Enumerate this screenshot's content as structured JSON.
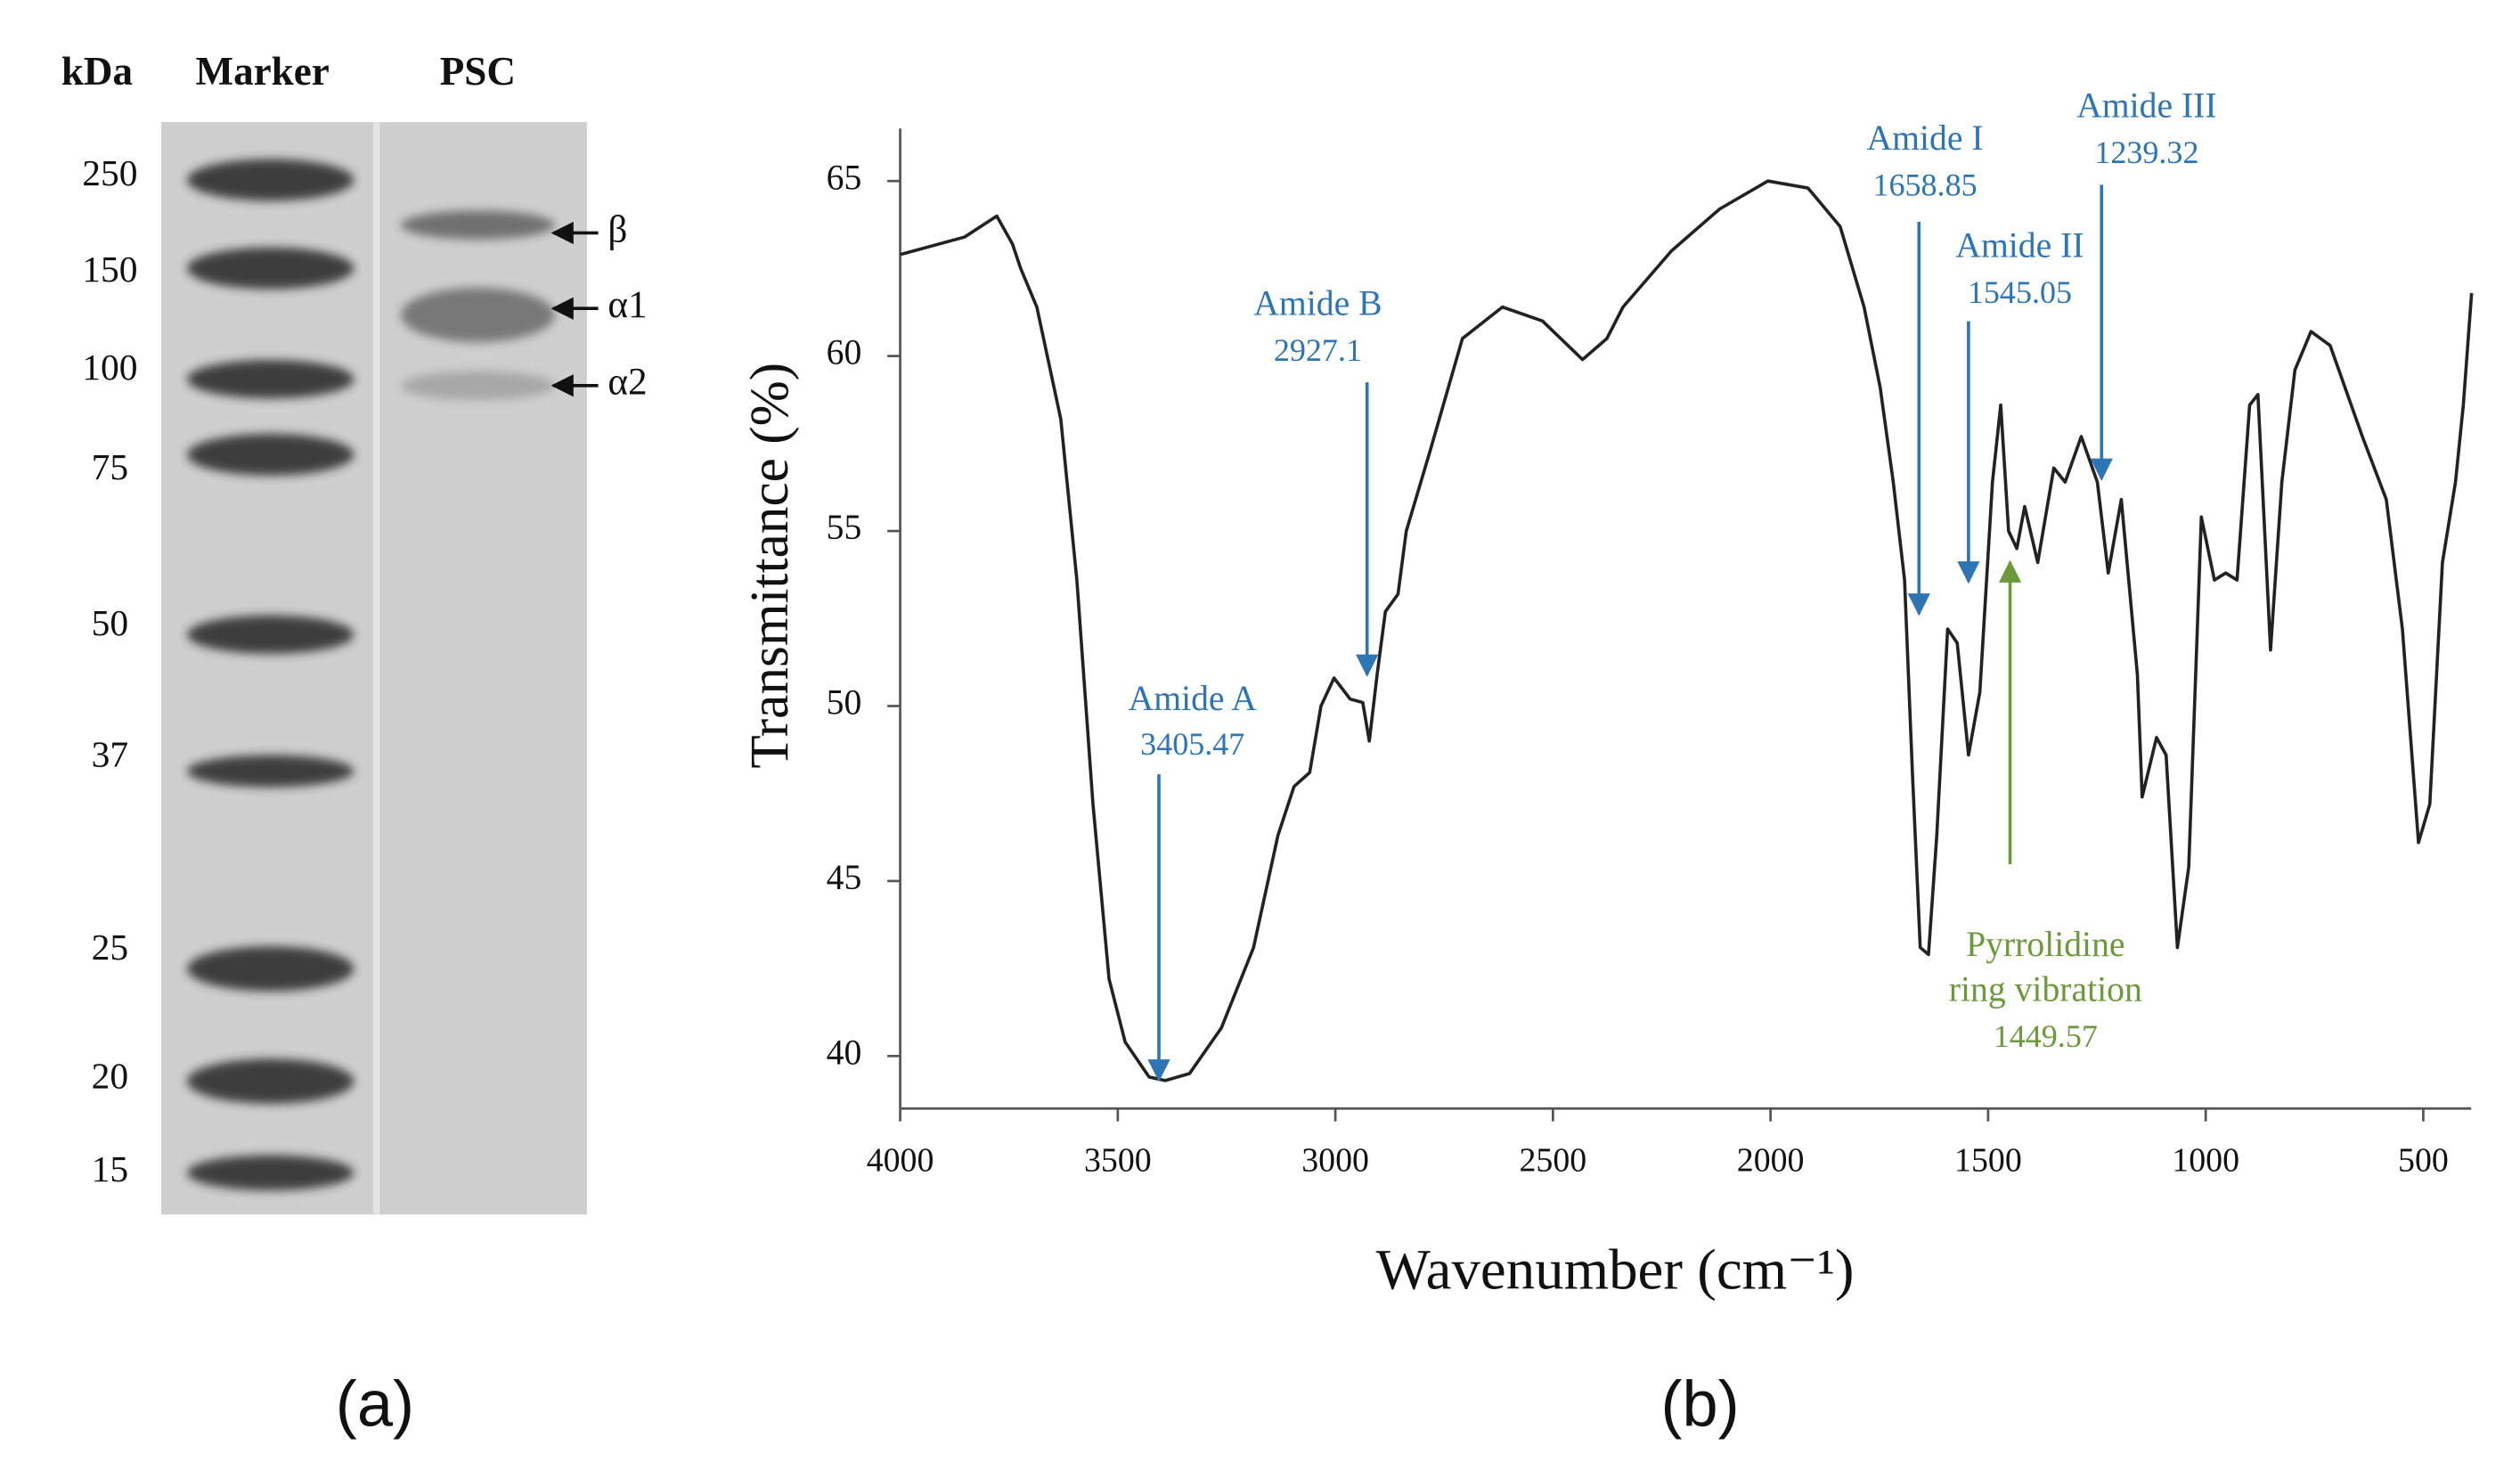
{
  "gel": {
    "headers": [
      "kDa",
      "Marker",
      "PSC"
    ],
    "ladder": [
      "250",
      "150",
      "100",
      "75",
      "50",
      "37",
      "25",
      "20",
      "15"
    ],
    "bands": [
      "β",
      "α1",
      "α2"
    ],
    "panel_label": "(a)"
  },
  "chart_data": {
    "type": "line",
    "panel_label": "(b)",
    "xlabel": "Wavenumber (cm⁻¹)",
    "ylabel": "Transmittance (%)",
    "color": "#222222",
    "xlim": [
      4000,
      390
    ],
    "ylim": [
      38.5,
      66.5
    ],
    "xticks": [
      4000,
      3500,
      3000,
      2500,
      2000,
      1500,
      1000,
      500
    ],
    "yticks": [
      40,
      45,
      50,
      55,
      60,
      65
    ],
    "x": [
      4000,
      3852,
      3778,
      3742,
      3723,
      3686,
      3631,
      3594,
      3557,
      3520,
      3483,
      3428,
      3391,
      3335,
      3262,
      3188,
      3132,
      3095,
      3059,
      3033,
      3003,
      2966,
      2937,
      2922,
      2904,
      2885,
      2856,
      2837,
      2782,
      2708,
      2616,
      2524,
      2432,
      2376,
      2339,
      2228,
      2117,
      2006,
      1914,
      1840,
      1785,
      1748,
      1718,
      1692,
      1674,
      1656,
      1637,
      1618,
      1593,
      1571,
      1545,
      1519,
      1490,
      1471,
      1453,
      1434,
      1416,
      1386,
      1349,
      1323,
      1286,
      1249,
      1224,
      1194,
      1157,
      1146,
      1113,
      1091,
      1065,
      1039,
      1010,
      980,
      954,
      928,
      899,
      880,
      851,
      825,
      795,
      758,
      714,
      640,
      585,
      548,
      511,
      485,
      456,
      426,
      408,
      389
    ],
    "values": [
      62.9,
      63.4,
      64.0,
      63.2,
      62.5,
      61.4,
      58.2,
      53.6,
      47.2,
      42.2,
      40.4,
      39.4,
      39.3,
      39.5,
      40.8,
      43.1,
      46.3,
      47.7,
      48.1,
      50.0,
      50.8,
      50.2,
      50.1,
      49.0,
      50.9,
      52.7,
      53.2,
      55.0,
      57.3,
      60.5,
      61.4,
      61.0,
      59.9,
      60.5,
      61.4,
      63.0,
      64.2,
      65.0,
      64.8,
      63.7,
      61.4,
      59.1,
      56.4,
      53.6,
      48.1,
      43.1,
      42.9,
      46.3,
      52.2,
      51.8,
      48.6,
      50.4,
      56.4,
      58.6,
      55.0,
      54.5,
      55.7,
      54.1,
      56.8,
      56.4,
      57.7,
      56.4,
      53.8,
      55.9,
      50.9,
      47.4,
      49.1,
      48.6,
      43.1,
      45.4,
      55.4,
      53.6,
      53.8,
      53.6,
      58.6,
      58.9,
      51.6,
      56.4,
      59.6,
      60.7,
      60.3,
      57.7,
      55.9,
      52.2,
      46.1,
      47.2,
      54.1,
      56.4,
      58.6,
      61.8
    ],
    "annotations": [
      {
        "lines": [
          "Amide A"
        ],
        "x": 3405.47,
        "color": "#2e75b6"
      },
      {
        "lines": [
          "Amide B"
        ],
        "x": 2927.1,
        "color": "#2e75b6"
      },
      {
        "lines": [
          "Amide I"
        ],
        "x": 1658.85,
        "color": "#2e75b6"
      },
      {
        "lines": [
          "Amide II"
        ],
        "x": 1545.05,
        "color": "#2e75b6"
      },
      {
        "lines": [
          "Amide III"
        ],
        "x": 1239.32,
        "color": "#2e75b6"
      },
      {
        "lines": [
          "Pyrrolidine",
          "ring vibration"
        ],
        "x": 1449.57,
        "color": "#6a9a3a"
      }
    ]
  }
}
